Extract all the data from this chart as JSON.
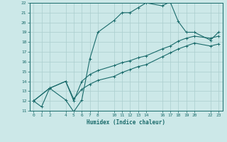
{
  "xlabel": "Humidex (Indice chaleur)",
  "xlim": [
    -0.5,
    23.5
  ],
  "ylim": [
    11,
    22
  ],
  "xticks": [
    0,
    1,
    2,
    4,
    5,
    6,
    7,
    8,
    10,
    11,
    12,
    13,
    14,
    16,
    17,
    18,
    19,
    20,
    22,
    23
  ],
  "yticks": [
    11,
    12,
    13,
    14,
    15,
    16,
    17,
    18,
    19,
    20,
    21,
    22
  ],
  "line_color": "#1a6b6b",
  "bg_color": "#cce8e8",
  "grid_color": "#aacece",
  "lines": [
    {
      "x": [
        0,
        1,
        2,
        4,
        5,
        6,
        7,
        8,
        10,
        11,
        12,
        13,
        14,
        16,
        17,
        18,
        19,
        20,
        22,
        23
      ],
      "y": [
        12.0,
        11.4,
        13.3,
        12.1,
        10.9,
        12.1,
        16.3,
        19.0,
        20.2,
        21.0,
        21.0,
        21.5,
        22.0,
        21.7,
        22.1,
        20.1,
        19.0,
        19.0,
        18.2,
        19.0
      ]
    },
    {
      "x": [
        0,
        2,
        4,
        5,
        6,
        7,
        8,
        10,
        11,
        12,
        13,
        14,
        16,
        17,
        18,
        19,
        20,
        22,
        23
      ],
      "y": [
        12.0,
        13.3,
        14.0,
        12.0,
        14.0,
        14.7,
        15.1,
        15.6,
        15.9,
        16.1,
        16.4,
        16.6,
        17.3,
        17.6,
        18.1,
        18.4,
        18.6,
        18.4,
        18.6
      ]
    },
    {
      "x": [
        0,
        2,
        4,
        5,
        6,
        7,
        8,
        10,
        11,
        12,
        13,
        14,
        16,
        17,
        18,
        19,
        20,
        22,
        23
      ],
      "y": [
        12.0,
        13.3,
        14.0,
        12.2,
        13.2,
        13.7,
        14.1,
        14.5,
        14.9,
        15.2,
        15.5,
        15.7,
        16.5,
        16.9,
        17.3,
        17.6,
        17.9,
        17.6,
        17.8
      ]
    }
  ]
}
